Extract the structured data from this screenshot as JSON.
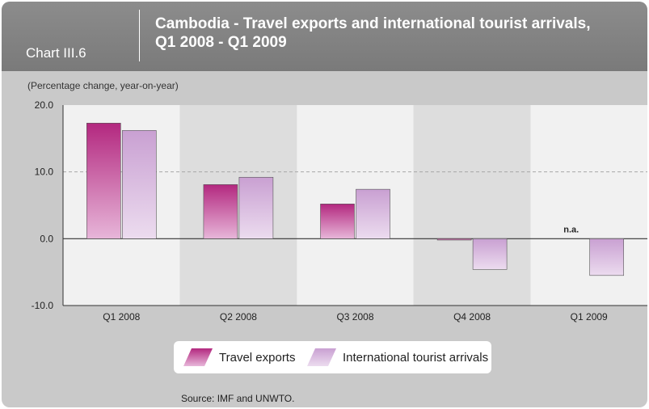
{
  "header": {
    "chart_number": "Chart III.6",
    "title_line1": "Cambodia - Travel exports and international tourist arrivals,",
    "title_line2": "Q1 2008 - Q1 2009"
  },
  "subtitle": "(Percentage change, year-on-year)",
  "source": "Source: IMF and UNWTO.",
  "colors": {
    "travel_exports": "#b3287f",
    "tourist_arrivals": "#c9a0d2"
  },
  "chart_data": {
    "type": "bar",
    "categories": [
      "Q1 2008",
      "Q2 2008",
      "Q3 2008",
      "Q4 2008",
      "Q1 2009"
    ],
    "series": [
      {
        "name": "Travel exports",
        "values": [
          17.3,
          8.1,
          5.2,
          -0.2,
          null
        ]
      },
      {
        "name": "International tourist arrivals",
        "values": [
          16.2,
          9.2,
          7.4,
          -4.6,
          -5.5
        ]
      }
    ],
    "ylim": [
      -10,
      20
    ],
    "yticks": [
      20,
      10,
      0,
      -10
    ],
    "ytick_labels": [
      "20.0",
      "10.0",
      "0.0",
      "-10.0"
    ],
    "annotations": [
      {
        "category": "Q1 2009",
        "series": "Travel exports",
        "text": "n.a."
      }
    ],
    "legend_position": "bottom",
    "gridline_at": 10
  }
}
